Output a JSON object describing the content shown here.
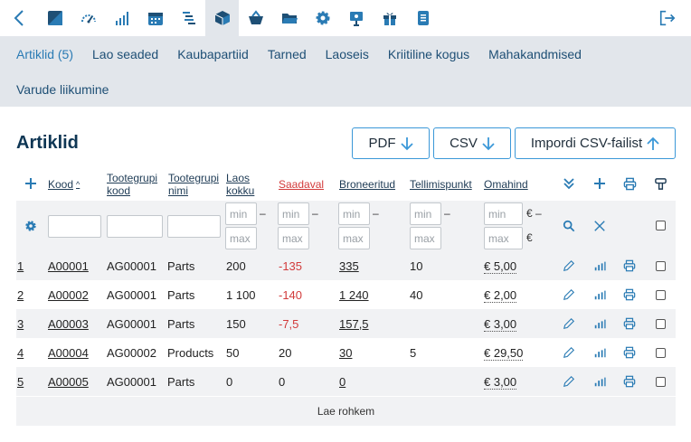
{
  "toolbar": {
    "icons": [
      "back-icon",
      "dashboard-icon",
      "speed-gauge-icon",
      "bar-chart-icon",
      "calendar-icon",
      "gantt-icon",
      "box-icon",
      "basket-icon",
      "folder-icon",
      "gear-icon",
      "presentation-icon",
      "gift-icon",
      "document-icon"
    ],
    "active_index": 6,
    "colors": {
      "icon": "#2a7bb4",
      "active_bg": "#e2e6eb"
    }
  },
  "nav": {
    "row1": [
      "Artiklid (5)",
      "Lao seaded",
      "Kaubapartiid",
      "Tarned",
      "Laoseis",
      "Kriitiline kogus",
      "Mahakandmised"
    ],
    "row2": [
      "Varude liikumine"
    ]
  },
  "page": {
    "title": "Artiklid",
    "pdf_label": "PDF",
    "csv_label": "CSV",
    "import_label": "Impordi CSV-failist"
  },
  "table": {
    "headers": {
      "kood": "Kood",
      "grupi_kood": "Tootegrupi kood",
      "grupi_nimi": "Tootegrupi nimi",
      "laos": "Laos kokku",
      "saadaval": "Saadaval",
      "broneeritud": "Broneeritud",
      "tellimispunkt": "Tellimispunkt",
      "omahind": "Omahind"
    },
    "filter": {
      "min": "min",
      "max": "max",
      "dash": "–",
      "euro": "€"
    },
    "rows": [
      {
        "n": "1",
        "kood": "A00001",
        "grupi": "AG00001",
        "nimi": "Parts",
        "laos": "200",
        "saadaval": "-135",
        "bron": "335",
        "tell": "10",
        "hind": "€ 5,00"
      },
      {
        "n": "2",
        "kood": "A00002",
        "grupi": "AG00001",
        "nimi": "Parts",
        "laos": "1 100",
        "saadaval": "-140",
        "bron": "1 240",
        "tell": "40",
        "hind": "€ 2,00"
      },
      {
        "n": "3",
        "kood": "A00003",
        "grupi": "AG00001",
        "nimi": "Parts",
        "laos": "150",
        "saadaval": "-7,5",
        "bron": "157,5",
        "tell": "",
        "hind": "€ 3,00"
      },
      {
        "n": "4",
        "kood": "A00004",
        "grupi": "AG00002",
        "nimi": "Products",
        "laos": "50",
        "saadaval": "20",
        "bron": "30",
        "tell": "5",
        "hind": "€ 29,50"
      },
      {
        "n": "5",
        "kood": "A00005",
        "grupi": "AG00001",
        "nimi": "Parts",
        "laos": "0",
        "saadaval": "0",
        "bron": "0",
        "tell": "",
        "hind": "€ 3,00"
      }
    ],
    "load_more": "Lae rohkem"
  }
}
